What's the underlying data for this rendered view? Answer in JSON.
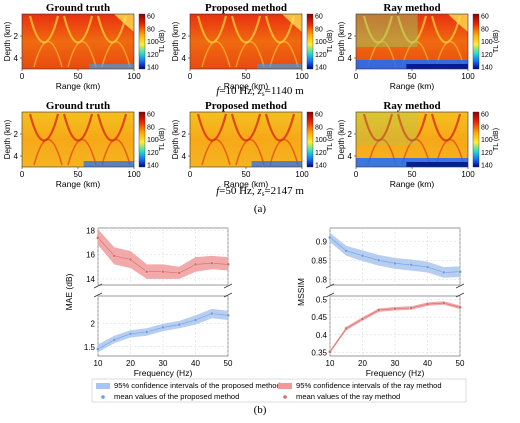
{
  "figure": {
    "row1_caption": "f=10 Hz, zs=1140 m",
    "row2_caption": "f=50 Hz, zs=2147 m",
    "label_a": "(a)",
    "label_b": "(b)"
  },
  "tl_maps": {
    "titles": [
      "Ground truth",
      "Proposed method",
      "Ray method"
    ],
    "xlabel": "Range (km)",
    "ylabel": "Depth (km)",
    "xticks": [
      "0",
      "50",
      "100"
    ],
    "yticks": [
      "2",
      "4"
    ],
    "colorbar_label": "TL (dB)",
    "colorbar_ticks": [
      "60",
      "80",
      "100",
      "120",
      "140"
    ]
  },
  "chart_data": [
    {
      "type": "line",
      "xlabel": "Frequency (Hz)",
      "ylabel": "MAE (dB)",
      "x": [
        10,
        15,
        20,
        25,
        30,
        35,
        40,
        45,
        50
      ],
      "xticks": [
        "10",
        "20",
        "30",
        "40",
        "50"
      ],
      "axis_break": true,
      "upper_ylim": [
        13.5,
        18.2
      ],
      "upper_yticks": [
        "14",
        "16",
        "18"
      ],
      "lower_ylim": [
        1.3,
        2.6
      ],
      "lower_yticks": [
        "1.5",
        "2"
      ],
      "grid": true,
      "series": [
        {
          "name": "mean values of the proposed method",
          "color": "#6f9ed8",
          "values": [
            1.45,
            1.65,
            1.78,
            1.82,
            1.92,
            1.98,
            2.08,
            2.22,
            2.18
          ],
          "lower": [
            1.38,
            1.58,
            1.7,
            1.74,
            1.84,
            1.9,
            1.98,
            2.12,
            2.08
          ],
          "upper": [
            1.55,
            1.74,
            1.86,
            1.9,
            2.0,
            2.06,
            2.18,
            2.32,
            2.28
          ]
        },
        {
          "name": "mean values of the ray method",
          "color": "#d86a6a",
          "values": [
            17.4,
            15.9,
            15.6,
            14.6,
            14.6,
            14.5,
            15.2,
            15.3,
            15.2
          ],
          "lower": [
            16.8,
            15.2,
            14.9,
            14.0,
            14.0,
            14.0,
            14.6,
            14.8,
            14.7
          ],
          "upper": [
            18.1,
            16.6,
            16.3,
            15.2,
            15.2,
            15.0,
            15.8,
            15.9,
            15.8
          ]
        }
      ]
    },
    {
      "type": "line",
      "xlabel": "Frequency (Hz)",
      "ylabel": "MSSIM",
      "x": [
        10,
        15,
        20,
        25,
        30,
        35,
        40,
        45,
        50
      ],
      "xticks": [
        "10",
        "20",
        "30",
        "40",
        "50"
      ],
      "axis_break": true,
      "upper_ylim": [
        0.785,
        0.935
      ],
      "upper_yticks": [
        "0.8",
        "0.85",
        "0.9"
      ],
      "lower_ylim": [
        0.34,
        0.51
      ],
      "lower_yticks": [
        "0.35",
        "0.4",
        "0.45",
        "0.5"
      ],
      "grid": true,
      "series": [
        {
          "name": "mean values of the proposed method",
          "color": "#6f9ed8",
          "values": [
            0.91,
            0.875,
            0.862,
            0.85,
            0.842,
            0.838,
            0.832,
            0.818,
            0.82
          ],
          "lower": [
            0.898,
            0.862,
            0.848,
            0.836,
            0.828,
            0.823,
            0.818,
            0.804,
            0.806
          ],
          "upper": [
            0.922,
            0.888,
            0.876,
            0.864,
            0.856,
            0.852,
            0.846,
            0.832,
            0.834
          ]
        },
        {
          "name": "mean values of the ray method",
          "color": "#d86a6a",
          "values": [
            0.352,
            0.418,
            0.445,
            0.47,
            0.474,
            0.476,
            0.487,
            0.49,
            0.478
          ],
          "lower": [
            0.348,
            0.413,
            0.44,
            0.465,
            0.469,
            0.471,
            0.482,
            0.485,
            0.473
          ],
          "upper": [
            0.356,
            0.423,
            0.45,
            0.475,
            0.479,
            0.481,
            0.492,
            0.495,
            0.483
          ]
        }
      ]
    }
  ],
  "legend": {
    "items": [
      {
        "kind": "band",
        "color": "#a9c6f0",
        "label": "95% confidence intervals of the proposed method"
      },
      {
        "kind": "band",
        "color": "#ee9a9a",
        "label": "95% confidence intervals of the ray method"
      },
      {
        "kind": "dot",
        "color": "#6f9ed8",
        "label": "mean values of the proposed method"
      },
      {
        "kind": "dot",
        "color": "#d86a6a",
        "label": "mean values of the ray method"
      }
    ]
  }
}
